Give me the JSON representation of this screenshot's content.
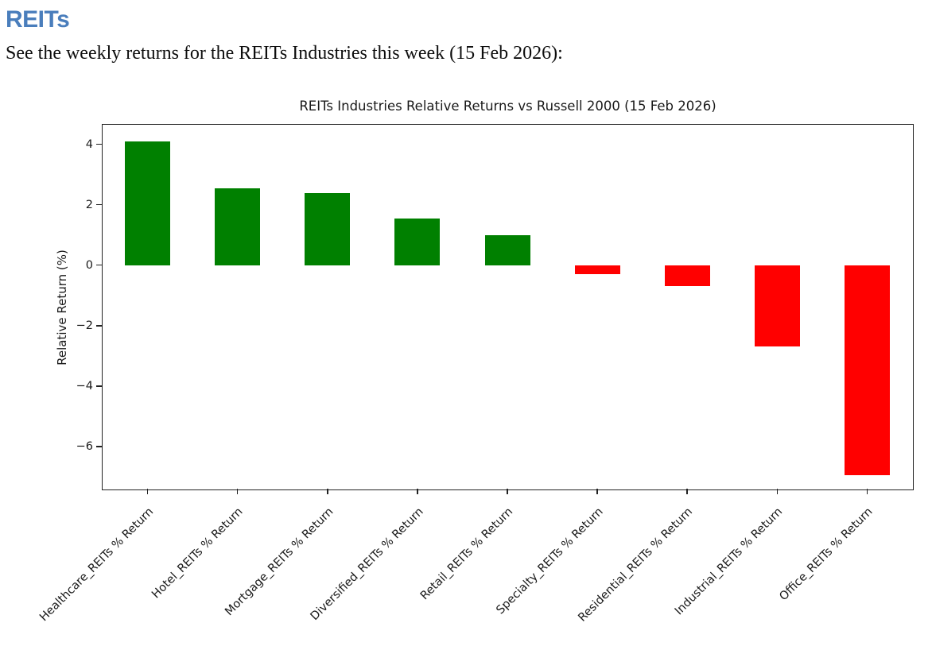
{
  "header": {
    "title": "REITs",
    "subtitle": "See the weekly returns for the REITs Industries this week (15 Feb 2026):"
  },
  "colors": {
    "heading": "#4a7ebc",
    "axis": "#222222",
    "text": "#1a1a1a"
  },
  "chart_data": {
    "type": "bar",
    "title": "REITs Industries Relative Returns vs Russell 2000 (15 Feb 2026)",
    "xlabel": "",
    "ylabel": "Relative Return (%)",
    "categories": [
      "Healthcare_REITs % Return",
      "Hotel_REITs % Return",
      "Mortgage_REITs % Return",
      "Diversified_REITs % Return",
      "Retail_REITs % Return",
      "Specialty_REITs % Return",
      "Residential_REITs % Return",
      "Industrial_REITs % Return",
      "Office_REITs % Return"
    ],
    "values": [
      4.1,
      2.55,
      2.4,
      1.55,
      1.0,
      -0.3,
      -0.7,
      -2.7,
      -6.95
    ],
    "yticks": [
      4,
      2,
      0,
      -2,
      -4,
      -6
    ],
    "ylim": [
      -7.4,
      4.65
    ],
    "positive_color": "#008000",
    "negative_color": "#ff0000",
    "grid": false,
    "legend": null,
    "x_tick_rotation_deg": 45
  }
}
